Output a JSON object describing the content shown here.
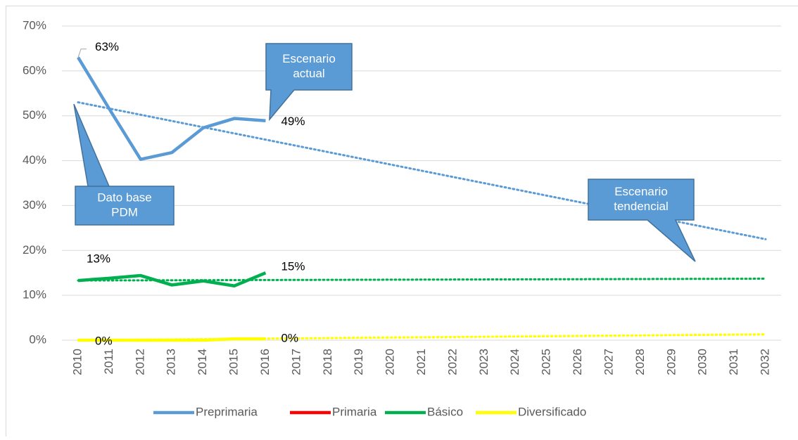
{
  "chart_data": {
    "type": "line",
    "categories": [
      "2010",
      "2011",
      "2012",
      "2013",
      "2014",
      "2015",
      "2016",
      "2017",
      "2018",
      "2019",
      "2020",
      "2021",
      "2022",
      "2023",
      "2024",
      "2025",
      "2026",
      "2027",
      "2028",
      "2029",
      "2030",
      "2031",
      "2032"
    ],
    "series": [
      {
        "name": "Preprimaria",
        "color": "#5b9bd5",
        "values": [
          63,
          51.5,
          40.3,
          41.8,
          47.3,
          49.4,
          48.9,
          null,
          null,
          null,
          null,
          null,
          null,
          null,
          null,
          null,
          null,
          null,
          null,
          null,
          null,
          null,
          null
        ],
        "value_labels": [
          "63%",
          null,
          null,
          null,
          null,
          null,
          "49%",
          null,
          null,
          null,
          null,
          null,
          null,
          null,
          null,
          null,
          null,
          null,
          null,
          null,
          null,
          null,
          null
        ],
        "trend": [
          53,
          22.5
        ]
      },
      {
        "name": "Primaria",
        "color": "#ff0000",
        "values": [
          null,
          null,
          null,
          null,
          null,
          null,
          null,
          null,
          null,
          null,
          null,
          null,
          null,
          null,
          null,
          null,
          null,
          null,
          null,
          null,
          null,
          null,
          null
        ]
      },
      {
        "name": "Básico",
        "color": "#00b050",
        "values": [
          13.3,
          13.8,
          14.4,
          12.3,
          13.2,
          12.1,
          15.0,
          null,
          null,
          null,
          null,
          null,
          null,
          null,
          null,
          null,
          null,
          null,
          null,
          null,
          null,
          null,
          null
        ],
        "value_labels": [
          "13%",
          null,
          null,
          null,
          null,
          null,
          "15%",
          null,
          null,
          null,
          null,
          null,
          null,
          null,
          null,
          null,
          null,
          null,
          null,
          null,
          null,
          null,
          null
        ],
        "trend": [
          13.3,
          13.7
        ]
      },
      {
        "name": "Diversificado",
        "color": "#ffff00",
        "values": [
          0,
          0,
          0,
          0,
          0,
          0.3,
          0.3,
          null,
          null,
          null,
          null,
          null,
          null,
          null,
          null,
          null,
          null,
          null,
          null,
          null,
          null,
          null,
          null
        ],
        "value_labels": [
          "0%",
          null,
          null,
          null,
          null,
          null,
          "0%",
          null,
          null,
          null,
          null,
          null,
          null,
          null,
          null,
          null,
          null,
          null,
          null,
          null,
          null,
          null,
          null
        ],
        "trend": [
          0,
          1.3
        ]
      }
    ],
    "ylim": [
      0,
      70
    ],
    "yticks": [
      {
        "value": 0,
        "label": "0%"
      },
      {
        "value": 10,
        "label": "10%"
      },
      {
        "value": 20,
        "label": "20%"
      },
      {
        "value": 30,
        "label": "30%"
      },
      {
        "value": 40,
        "label": "40%"
      },
      {
        "value": 50,
        "label": "50%"
      },
      {
        "value": 60,
        "label": "60%"
      },
      {
        "value": 70,
        "label": "70%"
      }
    ],
    "grid": true,
    "legend": "bottom",
    "annotations": [
      {
        "text": [
          "Escenario",
          "actual"
        ]
      },
      {
        "text": [
          "Dato base",
          "PDM"
        ]
      },
      {
        "text": [
          "Escenario",
          "tendencial"
        ]
      }
    ]
  }
}
